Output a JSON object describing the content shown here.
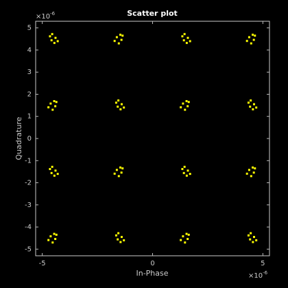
{
  "chart_data": {
    "type": "scatter",
    "title": "Scatter plot",
    "x_label": "In-Phase",
    "y_label": "Quadrature",
    "x_scale_base": "×10",
    "x_scale_exponent": "-6",
    "y_scale_base": "×10",
    "y_scale_exponent": "-6",
    "color": "#ffff00",
    "x": [
      -4.4,
      -4.65,
      -4.45,
      -4.58,
      -4.3,
      -4.55,
      -1.62,
      -1.36,
      -1.53,
      -1.41,
      -1.72,
      -1.46,
      1.6,
      1.35,
      1.55,
      1.42,
      1.7,
      1.45,
      4.38,
      4.64,
      4.47,
      4.59,
      4.28,
      4.54,
      -4.62,
      -4.36,
      -4.53,
      -4.41,
      -4.72,
      -4.46,
      -1.4,
      -1.65,
      -1.45,
      -1.58,
      -1.3,
      -1.55,
      1.38,
      1.64,
      1.47,
      1.59,
      1.28,
      1.54,
      4.6,
      4.35,
      4.55,
      4.42,
      4.7,
      4.45,
      -4.4,
      -4.65,
      -4.45,
      -4.58,
      -4.3,
      -4.55,
      -1.62,
      -1.36,
      -1.53,
      -1.41,
      -1.72,
      -1.46,
      1.6,
      1.35,
      1.55,
      1.42,
      1.7,
      1.45,
      4.38,
      4.64,
      4.47,
      4.59,
      4.28,
      4.54,
      -4.62,
      -4.36,
      -4.53,
      -4.41,
      -4.72,
      -4.46,
      -1.4,
      -1.65,
      -1.45,
      -1.58,
      -1.3,
      -1.55,
      1.38,
      1.64,
      1.47,
      1.59,
      1.28,
      1.54,
      4.6,
      4.35,
      4.55,
      4.42,
      4.7,
      4.45
    ],
    "y": [
      4.55,
      4.62,
      4.32,
      4.44,
      4.4,
      4.72,
      4.58,
      4.65,
      4.3,
      4.46,
      4.41,
      4.69,
      4.55,
      4.62,
      4.32,
      4.44,
      4.4,
      4.72,
      4.58,
      4.65,
      4.3,
      4.46,
      4.41,
      4.69,
      1.58,
      1.65,
      1.3,
      1.46,
      1.41,
      1.69,
      1.55,
      1.62,
      1.32,
      1.44,
      1.4,
      1.72,
      1.58,
      1.65,
      1.3,
      1.46,
      1.41,
      1.69,
      1.55,
      1.62,
      1.32,
      1.44,
      1.4,
      1.72,
      -1.45,
      -1.38,
      -1.68,
      -1.56,
      -1.6,
      -1.28,
      -1.42,
      -1.35,
      -1.7,
      -1.54,
      -1.59,
      -1.31,
      -1.45,
      -1.38,
      -1.68,
      -1.56,
      -1.6,
      -1.28,
      -1.42,
      -1.35,
      -1.7,
      -1.54,
      -1.59,
      -1.31,
      -4.42,
      -4.35,
      -4.7,
      -4.54,
      -4.59,
      -4.31,
      -4.45,
      -4.38,
      -4.68,
      -4.56,
      -4.6,
      -4.28,
      -4.42,
      -4.35,
      -4.7,
      -4.54,
      -4.59,
      -4.31,
      -4.45,
      -4.38,
      -4.68,
      -4.56,
      -4.6,
      -4.28
    ],
    "xlim": [
      -5.3,
      5.3
    ],
    "ylim": [
      -5.3,
      5.3
    ],
    "xticks": [
      -5,
      0,
      5
    ],
    "yticks": [
      -5,
      -4,
      -3,
      -2,
      -1,
      0,
      1,
      2,
      3,
      4,
      5
    ]
  }
}
